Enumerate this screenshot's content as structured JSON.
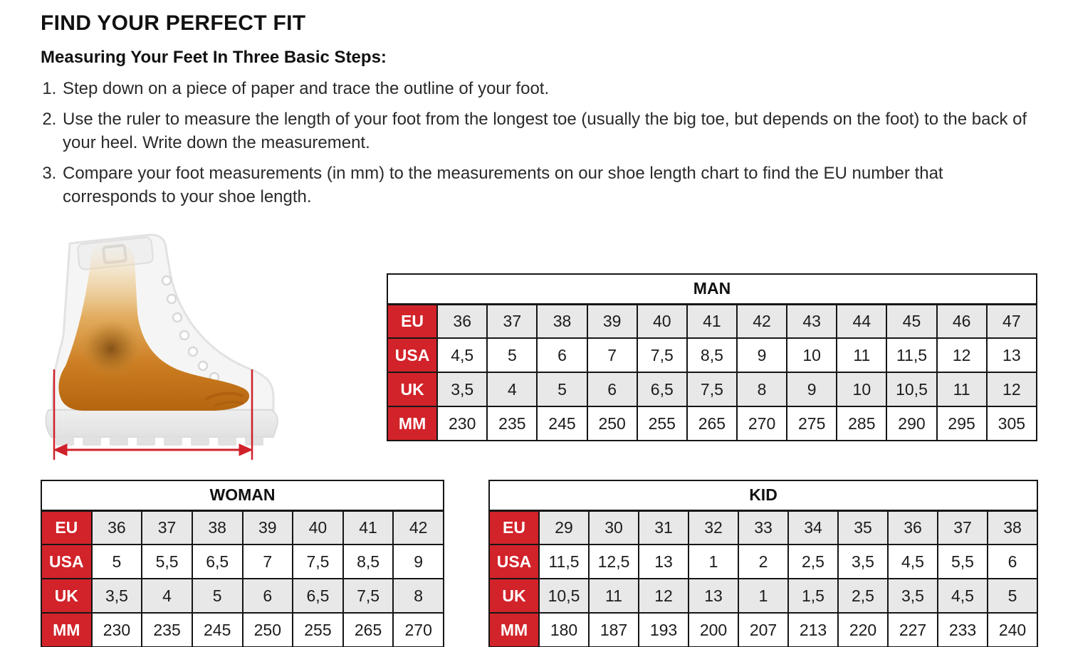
{
  "page": {
    "title": "FIND YOUR PERFECT FIT",
    "subtitle": "Measuring Your Feet In Three Basic Steps:",
    "steps": [
      "Step down on a piece of paper and trace the outline of your foot.",
      "Use the ruler to measure the length of your foot from the longest toe (usually the big toe, but depends on the foot) to the back of your heel. Write down the measurement.",
      "Compare your foot measurements (in mm) to the measurements on our shoe length chart to find the EU number that corresponds to your shoe length."
    ]
  },
  "colors": {
    "accent_red": "#d2232a",
    "row_alt_gray": "#e8e8e8",
    "table_border": "#161616",
    "measurement_line_red": "#d0212a"
  },
  "illustration": {
    "name": "boot-foot-xray-measurement",
    "description": "Translucent boot with orange foot x-ray and red length measurement arrow"
  },
  "tables": {
    "man": {
      "title": "MAN",
      "rows": [
        {
          "label": "EU",
          "values": [
            "36",
            "37",
            "38",
            "39",
            "40",
            "41",
            "42",
            "43",
            "44",
            "45",
            "46",
            "47"
          ]
        },
        {
          "label": "USA",
          "values": [
            "4,5",
            "5",
            "6",
            "7",
            "7,5",
            "8,5",
            "9",
            "10",
            "11",
            "11,5",
            "12",
            "13"
          ]
        },
        {
          "label": "UK",
          "values": [
            "3,5",
            "4",
            "5",
            "6",
            "6,5",
            "7,5",
            "8",
            "9",
            "10",
            "10,5",
            "11",
            "12"
          ]
        },
        {
          "label": "MM",
          "values": [
            "230",
            "235",
            "245",
            "250",
            "255",
            "265",
            "270",
            "275",
            "285",
            "290",
            "295",
            "305"
          ]
        }
      ]
    },
    "woman": {
      "title": "WOMAN",
      "rows": [
        {
          "label": "EU",
          "values": [
            "36",
            "37",
            "38",
            "39",
            "40",
            "41",
            "42"
          ]
        },
        {
          "label": "USA",
          "values": [
            "5",
            "5,5",
            "6,5",
            "7",
            "7,5",
            "8,5",
            "9"
          ]
        },
        {
          "label": "UK",
          "values": [
            "3,5",
            "4",
            "5",
            "6",
            "6,5",
            "7,5",
            "8"
          ]
        },
        {
          "label": "MM",
          "values": [
            "230",
            "235",
            "245",
            "250",
            "255",
            "265",
            "270"
          ]
        }
      ]
    },
    "kid": {
      "title": "KID",
      "rows": [
        {
          "label": "EU",
          "values": [
            "29",
            "30",
            "31",
            "32",
            "33",
            "34",
            "35",
            "36",
            "37",
            "38"
          ]
        },
        {
          "label": "USA",
          "values": [
            "11,5",
            "12,5",
            "13",
            "1",
            "2",
            "2,5",
            "3,5",
            "4,5",
            "5,5",
            "6"
          ]
        },
        {
          "label": "UK",
          "values": [
            "10,5",
            "11",
            "12",
            "13",
            "1",
            "1,5",
            "2,5",
            "3,5",
            "4,5",
            "5"
          ]
        },
        {
          "label": "MM",
          "values": [
            "180",
            "187",
            "193",
            "200",
            "207",
            "213",
            "220",
            "227",
            "233",
            "240"
          ]
        }
      ]
    }
  }
}
